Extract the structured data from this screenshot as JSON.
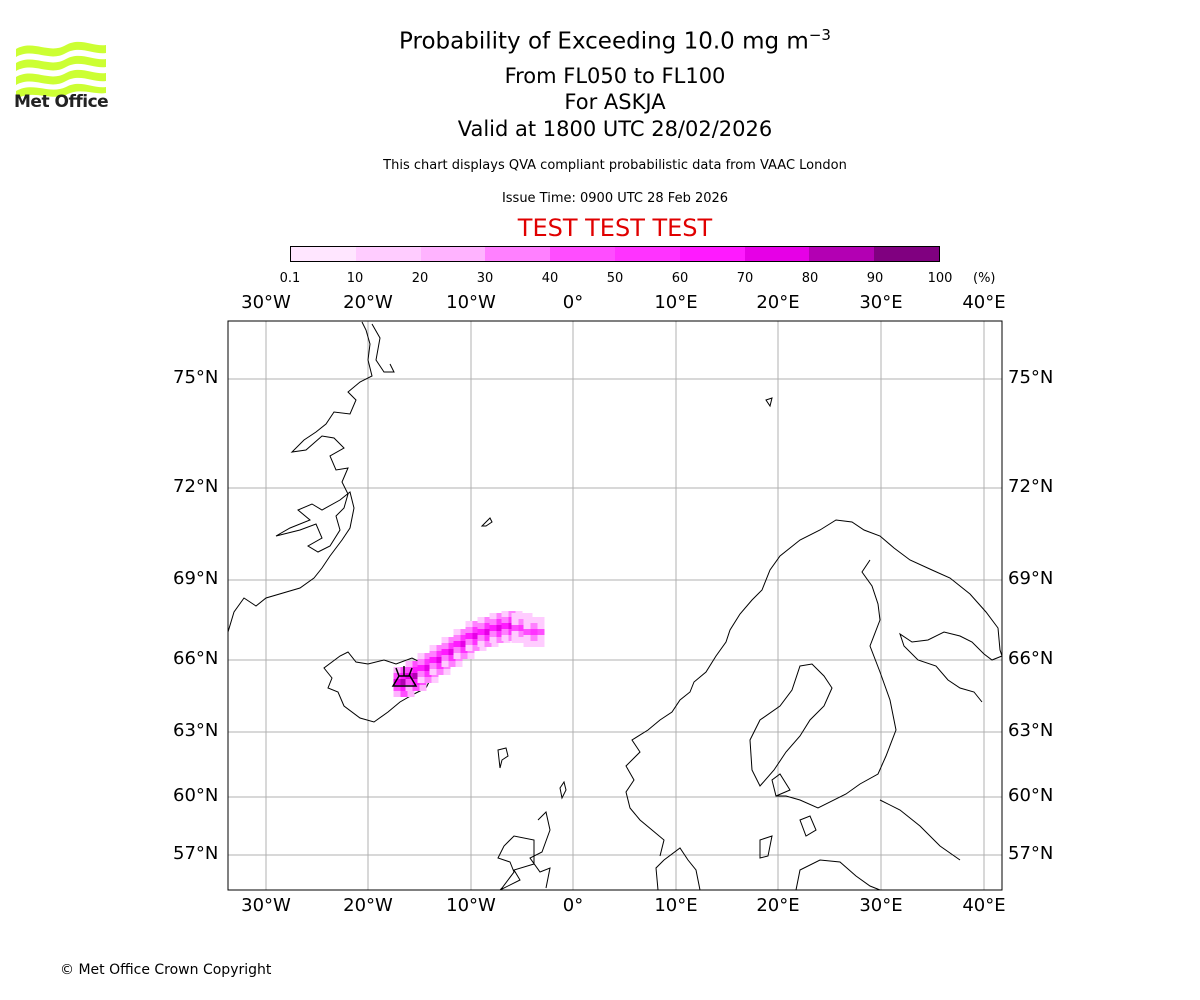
{
  "header": {
    "title_main": "Probability of Exceeding 10.0 mg m",
    "title_exp": "−3",
    "line_from": "From FL050 to FL100",
    "line_for": "For ASKJA",
    "line_valid": "Valid at 1800 UTC 28/02/2026",
    "disclaimer": "This chart displays QVA compliant probabilistic data from VAAC London",
    "issue_time": "Issue Time: 0900 UTC 28 Feb 2026",
    "test_banner": "TEST TEST TEST"
  },
  "logo": {
    "text": "Met Office",
    "color": "#ccff33"
  },
  "colorbar": {
    "ticks": [
      "0.1",
      "10",
      "20",
      "30",
      "40",
      "50",
      "60",
      "70",
      "80",
      "90",
      "100"
    ],
    "unit": "(%)",
    "colors": [
      "#ffe6ff",
      "#ffccff",
      "#ffb3ff",
      "#ff80ff",
      "#ff4dff",
      "#ff33ff",
      "#ff1aff",
      "#e600e6",
      "#b300b3",
      "#800080",
      "#66006b"
    ]
  },
  "map": {
    "lon_labels": [
      "30°W",
      "20°W",
      "10°W",
      "0°",
      "10°E",
      "20°E",
      "30°E",
      "40°E"
    ],
    "lat_labels": [
      "75°N",
      "72°N",
      "69°N",
      "66°N",
      "63°N",
      "60°N",
      "57°N"
    ],
    "volcano_icon": "volcano-icon"
  },
  "footer": {
    "copyright": "© Met Office Crown Copyright"
  }
}
